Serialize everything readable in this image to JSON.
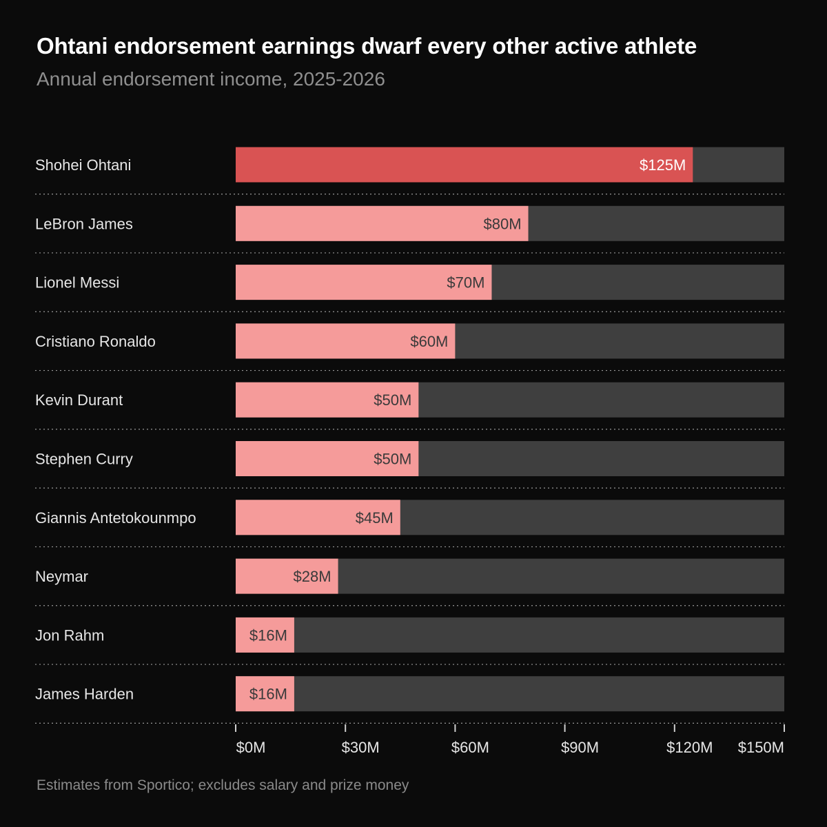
{
  "colors": {
    "background": "#0b0b0b",
    "highlight": "#d95353",
    "bar": "#f59b9a",
    "track": "#3f3f3f",
    "label": "#e6e6e6",
    "value_on_light": "#3a3a3a",
    "value_on_highlight": "#ffffff",
    "divider": "#9a9a9a"
  },
  "chart_data": {
    "type": "bar",
    "orientation": "horizontal",
    "title": "Ohtani endorsement earnings dwarf every other active athlete",
    "subtitle": "Annual endorsement income, 2025-2026",
    "xlabel": "",
    "ylabel": "",
    "xlim": [
      0,
      150
    ],
    "units": "$M",
    "categories": [
      "Shohei Ohtani",
      "LeBron James",
      "Lionel Messi",
      "Cristiano Ronaldo",
      "Kevin Durant",
      "Stephen Curry",
      "Giannis Antetokounmpo",
      "Neymar",
      "Jon Rahm",
      "James Harden"
    ],
    "values": [
      125,
      80,
      70,
      60,
      50,
      50,
      45,
      28,
      16,
      16
    ],
    "value_labels": [
      "$125M",
      "$80M",
      "$70M",
      "$60M",
      "$50M",
      "$50M",
      "$45M",
      "$28M",
      "$16M",
      "$16M"
    ],
    "highlight_index": 0,
    "ticks": [
      0,
      30,
      60,
      90,
      120,
      150
    ],
    "tick_labels": [
      "$0M",
      "$30M",
      "$60M",
      "$90M",
      "$120M",
      "$150M"
    ],
    "grid": false,
    "legend": "none",
    "footnote": "Estimates from Sportico; excludes salary and prize money"
  }
}
